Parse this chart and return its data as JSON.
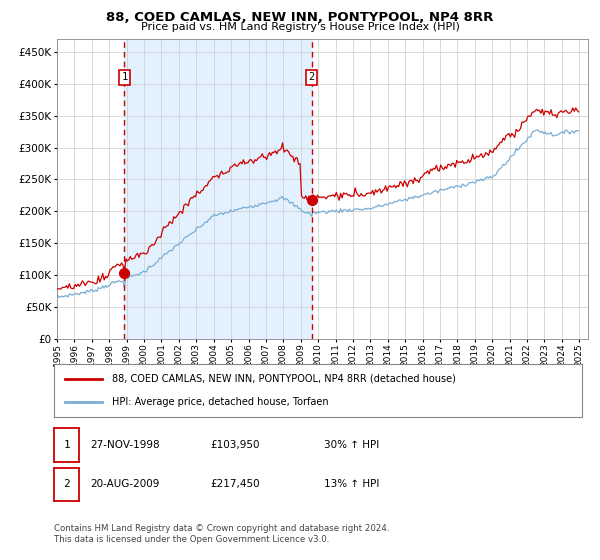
{
  "title": "88, COED CAMLAS, NEW INN, PONTYPOOL, NP4 8RR",
  "subtitle": "Price paid vs. HM Land Registry's House Price Index (HPI)",
  "legend_line1": "88, COED CAMLAS, NEW INN, PONTYPOOL, NP4 8RR (detached house)",
  "legend_line2": "HPI: Average price, detached house, Torfaen",
  "sale1_date": "27-NOV-1998",
  "sale1_price": 103950,
  "sale1_label": "30% ↑ HPI",
  "sale2_date": "20-AUG-2009",
  "sale2_price": 217450,
  "sale2_label": "13% ↑ HPI",
  "footnote": "Contains HM Land Registry data © Crown copyright and database right 2024.\nThis data is licensed under the Open Government Licence v3.0.",
  "hpi_color": "#7aadd4",
  "property_color": "#cc0000",
  "bg_shade_color": "#ddeeff",
  "dashed_line_color": "#cc0000",
  "ylim": [
    0,
    470000
  ],
  "yticks": [
    0,
    50000,
    100000,
    150000,
    200000,
    250000,
    300000,
    350000,
    400000,
    450000
  ],
  "start_year": 1995,
  "end_year": 2025
}
